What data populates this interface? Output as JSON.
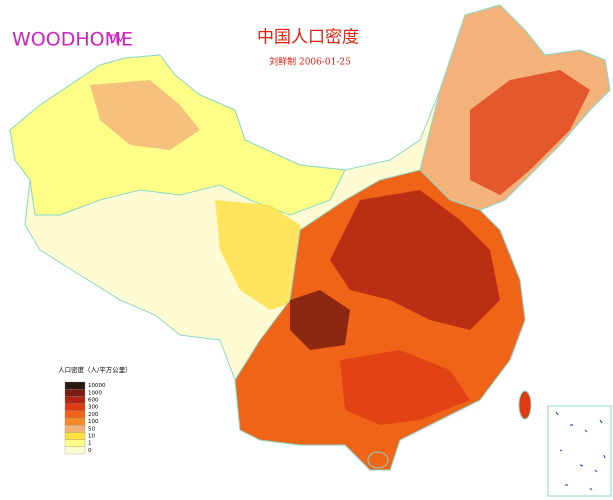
{
  "logo": {
    "text": "WOODHOME",
    "mark": "TM"
  },
  "title": "中国人口密度",
  "subtitle": "刘鲜制  2006-01-25",
  "legend": {
    "title": "人口密度（人/平方公里）",
    "items": [
      {
        "label": 10000,
        "color": "#2a1a12"
      },
      {
        "label": 1000,
        "color": "#7a1c12"
      },
      {
        "label": 600,
        "color": "#b02414"
      },
      {
        "label": 300,
        "color": "#e03a14"
      },
      {
        "label": 200,
        "color": "#f06418"
      },
      {
        "label": 100,
        "color": "#f68c28"
      },
      {
        "label": 50,
        "color": "#f2b27a"
      },
      {
        "label": 10,
        "color": "#ffe040"
      },
      {
        "label": 1,
        "color": "#ffff88"
      },
      {
        "label": 0,
        "color": "#fffbd2"
      }
    ]
  }
}
